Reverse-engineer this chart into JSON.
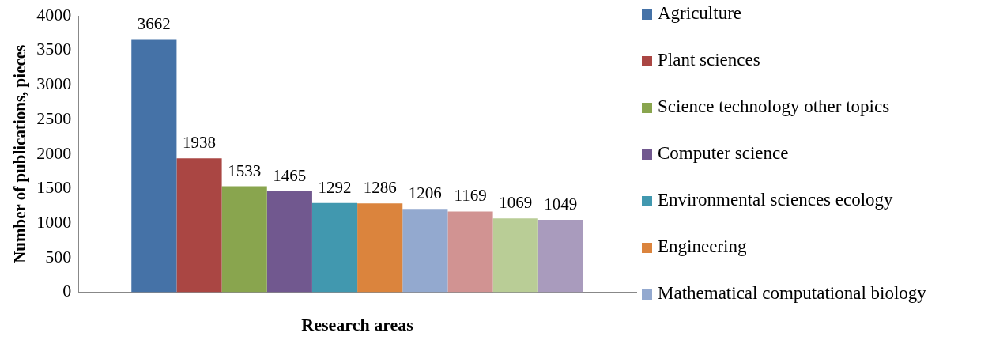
{
  "chart_data": {
    "type": "bar",
    "xlabel": "Research areas",
    "ylabel": "Number of publications, pieces",
    "categories": [
      null
    ],
    "series": [
      {
        "name": "Agriculture",
        "color": "#4572a7",
        "values": [
          3662
        ]
      },
      {
        "name": "Plant sciences",
        "color": "#aa4643",
        "values": [
          1938
        ]
      },
      {
        "name": "Science technology other topics",
        "color": "#89a54e",
        "values": [
          1533
        ]
      },
      {
        "name": "Computer science",
        "color": "#71588f",
        "values": [
          1465
        ]
      },
      {
        "name": "Environmental sciences ecology",
        "color": "#4198af",
        "values": [
          1292
        ]
      },
      {
        "name": "Engineering",
        "color": "#db843d",
        "values": [
          1286
        ]
      },
      {
        "name": "Mathematical computational biology",
        "color": "#93a9cf",
        "values": [
          1206
        ]
      },
      {
        "color": "#d19392",
        "values": [
          1169
        ]
      },
      {
        "color": "#b9cd96",
        "values": [
          1069
        ]
      },
      {
        "color": "#a99bbd",
        "values": [
          1049
        ]
      }
    ],
    "ylim": [
      0,
      4000
    ],
    "yticks": [
      0,
      500,
      1000,
      1500,
      2000,
      2500,
      3000,
      3500,
      4000
    ],
    "grid": false,
    "legend": "right",
    "data_labels": true
  }
}
